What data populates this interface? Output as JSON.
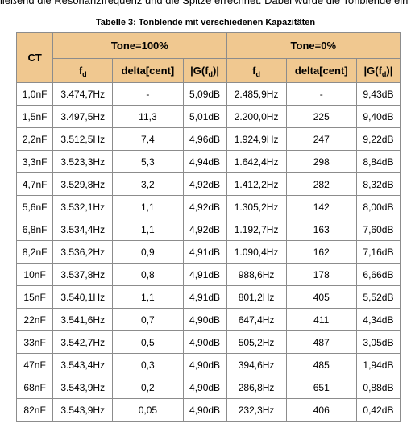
{
  "intro": "ließend die Resonanzfrequenz und die Spitze errechnet. Dabei wurde die Tonblende ein",
  "caption": "Tabelle 3: Tonblende mit verschiedenen Kapazitäten",
  "table": {
    "header": {
      "ct": "CT",
      "group1": "Tone=100%",
      "group2": "Tone=0%",
      "columns": [
        {
          "text": "f",
          "sub": "d"
        },
        {
          "text": "delta[cent]"
        },
        {
          "text": "|G(f",
          "sub": "d",
          "after": ")|"
        },
        {
          "text": "f",
          "sub": "d"
        },
        {
          "text": "delta[cent]"
        },
        {
          "text": "|G(f",
          "sub": "d",
          "after": ")|"
        }
      ]
    },
    "rows": [
      [
        "1,0nF",
        "3.474,7Hz",
        "-",
        "5,09dB",
        "2.485,9Hz",
        "-",
        "9,43dB"
      ],
      [
        "1,5nF",
        "3.497,5Hz",
        "11,3",
        "5,01dB",
        "2.200,0Hz",
        "225",
        "9,40dB"
      ],
      [
        "2,2nF",
        "3.512,5Hz",
        "7,4",
        "4,96dB",
        "1.924,9Hz",
        "247",
        "9,22dB"
      ],
      [
        "3,3nF",
        "3.523,3Hz",
        "5,3",
        "4,94dB",
        "1.642,4Hz",
        "298",
        "8,84dB"
      ],
      [
        "4,7nF",
        "3.529,8Hz",
        "3,2",
        "4,92dB",
        "1.412,2Hz",
        "282",
        "8,32dB"
      ],
      [
        "5,6nF",
        "3.532,1Hz",
        "1,1",
        "4,92dB",
        "1.305,2Hz",
        "142",
        "8,00dB"
      ],
      [
        "6,8nF",
        "3.534,4Hz",
        "1,1",
        "4,92dB",
        "1.192,7Hz",
        "163",
        "7,60dB"
      ],
      [
        "8,2nF",
        "3.536,2Hz",
        "0,9",
        "4,91dB",
        "1.090,4Hz",
        "162",
        "7,16dB"
      ],
      [
        "10nF",
        "3.537,8Hz",
        "0,8",
        "4,91dB",
        "988,6Hz",
        "178",
        "6,66dB"
      ],
      [
        "15nF",
        "3.540,1Hz",
        "1,1",
        "4,91dB",
        "801,2Hz",
        "405",
        "5,52dB"
      ],
      [
        "22nF",
        "3.541,6Hz",
        "0,7",
        "4,90dB",
        "647,4Hz",
        "411",
        "4,34dB"
      ],
      [
        "33nF",
        "3.542,7Hz",
        "0,5",
        "4,90dB",
        "505,2Hz",
        "487",
        "3,05dB"
      ],
      [
        "47nF",
        "3.543,4Hz",
        "0,3",
        "4,90dB",
        "394,6Hz",
        "485",
        "1,94dB"
      ],
      [
        "68nF",
        "3.543,9Hz",
        "0,2",
        "4,90dB",
        "286,8Hz",
        "651",
        "0,88dB"
      ],
      [
        "82nF",
        "3.543,9Hz",
        "0,05",
        "4,90dB",
        "232,3Hz",
        "406",
        "0,42dB"
      ]
    ]
  }
}
